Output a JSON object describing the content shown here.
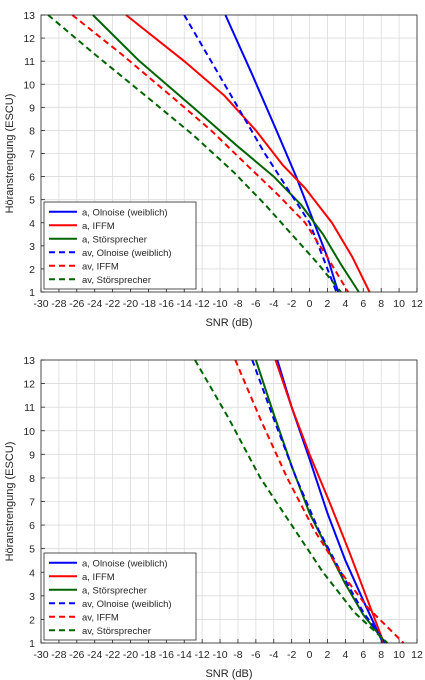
{
  "chart_data": [
    {
      "type": "line",
      "xlabel": "SNR (dB)",
      "ylabel": "Höranstrengung (ESCU)",
      "xlim": [
        -30,
        12
      ],
      "ylim": [
        1,
        13
      ],
      "xticks": [
        -30,
        -28,
        -26,
        -24,
        -22,
        -20,
        -18,
        -16,
        -14,
        -12,
        -10,
        -8,
        -6,
        -4,
        -2,
        0,
        2,
        4,
        6,
        8,
        10,
        12
      ],
      "yticks": [
        1,
        2,
        3,
        4,
        5,
        6,
        7,
        8,
        9,
        10,
        11,
        12,
        13
      ],
      "grid": true,
      "legend_position": "bottom-left",
      "series": [
        {
          "name": "a, Olnoise (weiblich)",
          "color": "#0000ff",
          "style": "solid",
          "x": [
            -9.4,
            -6.5,
            -3.7,
            -1.5,
            0.5,
            2.0,
            3.2
          ],
          "y": [
            13,
            10.5,
            8,
            6,
            4,
            2.5,
            1
          ]
        },
        {
          "name": "a, IFFM",
          "color": "#ff0000",
          "style": "solid",
          "x": [
            -20.5,
            -14,
            -9.5,
            -6,
            -3,
            -0.5,
            2.5,
            4.8,
            6.7
          ],
          "y": [
            13,
            11,
            9.5,
            8,
            6.5,
            5.5,
            4,
            2.5,
            1
          ]
        },
        {
          "name": "a, Störsprecher",
          "color": "#006400",
          "style": "solid",
          "x": [
            -24.2,
            -19,
            -13,
            -8,
            -4,
            -1,
            1.5,
            3.5,
            5.5
          ],
          "y": [
            13,
            11,
            9,
            7.3,
            6,
            4.8,
            3.5,
            2.2,
            1
          ]
        },
        {
          "name": "av, Olnoise (weiblich)",
          "color": "#0000ff",
          "style": "dashed",
          "x": [
            -14,
            -11,
            -8,
            -5,
            -2.5,
            0,
            1.5,
            3
          ],
          "y": [
            13,
            11,
            9,
            7,
            5.5,
            4,
            2.5,
            1
          ]
        },
        {
          "name": "av, IFFM",
          "color": "#ff0000",
          "style": "dashed",
          "x": [
            -26.5,
            -21,
            -15.5,
            -11,
            -7,
            -3.5,
            -0.5,
            2,
            4.3
          ],
          "y": [
            13,
            11.3,
            9.5,
            8,
            6.5,
            5.2,
            4,
            2.5,
            1
          ]
        },
        {
          "name": "av, Störsprecher",
          "color": "#006400",
          "style": "dashed",
          "x": [
            -29.2,
            -24,
            -18,
            -13,
            -8.5,
            -5,
            -2,
            1,
            3.5
          ],
          "y": [
            13,
            11.3,
            9.4,
            7.8,
            6.2,
            4.8,
            3.5,
            2.2,
            1
          ]
        }
      ]
    },
    {
      "type": "line",
      "xlabel": "SNR (dB)",
      "ylabel": "Höranstrengung (ESCU)",
      "xlim": [
        -30,
        12
      ],
      "ylim": [
        1,
        13
      ],
      "xticks": [
        -30,
        -28,
        -26,
        -24,
        -22,
        -20,
        -18,
        -16,
        -14,
        -12,
        -10,
        -8,
        -6,
        -4,
        -2,
        0,
        2,
        4,
        6,
        8,
        10,
        12
      ],
      "yticks": [
        1,
        2,
        3,
        4,
        5,
        6,
        7,
        8,
        9,
        10,
        11,
        12,
        13
      ],
      "grid": true,
      "legend_position": "bottom-left",
      "series": [
        {
          "name": "a, Olnoise (weiblich)",
          "color": "#0000ff",
          "style": "solid",
          "x": [
            -3.6,
            -2,
            0,
            2,
            4,
            6,
            8.2
          ],
          "y": [
            13,
            11,
            8.8,
            6.5,
            4.5,
            2.8,
            1
          ]
        },
        {
          "name": "a, IFFM",
          "color": "#ff0000",
          "style": "solid",
          "x": [
            -3.8,
            -2,
            0,
            2.2,
            4.5,
            6.5,
            8.3
          ],
          "y": [
            13,
            11,
            9,
            7,
            4.8,
            2.8,
            1
          ]
        },
        {
          "name": "a, Störsprecher",
          "color": "#006400",
          "style": "solid",
          "x": [
            -6,
            -4,
            -2,
            0,
            2,
            4,
            6,
            8.5
          ],
          "y": [
            13,
            10.7,
            8.5,
            6.5,
            5,
            3.5,
            2.2,
            1
          ]
        },
        {
          "name": "av, Olnoise (weiblich)",
          "color": "#0000ff",
          "style": "dashed",
          "x": [
            -6.4,
            -4,
            -1.5,
            1,
            3.5,
            6,
            8.5
          ],
          "y": [
            13,
            10.5,
            8,
            5.8,
            4,
            2.3,
            1
          ]
        },
        {
          "name": "av, IFFM",
          "color": "#ff0000",
          "style": "dashed",
          "x": [
            -8.3,
            -5.5,
            -2.5,
            0.5,
            3.5,
            6.5,
            10.5
          ],
          "y": [
            13,
            10.5,
            8,
            5.8,
            4,
            2.5,
            1
          ]
        },
        {
          "name": "av, Störsprecher",
          "color": "#006400",
          "style": "dashed",
          "x": [
            -12.8,
            -9,
            -5.5,
            -2,
            1.5,
            5,
            8.7
          ],
          "y": [
            13,
            10.5,
            8,
            6,
            4,
            2.3,
            1
          ]
        }
      ]
    }
  ]
}
